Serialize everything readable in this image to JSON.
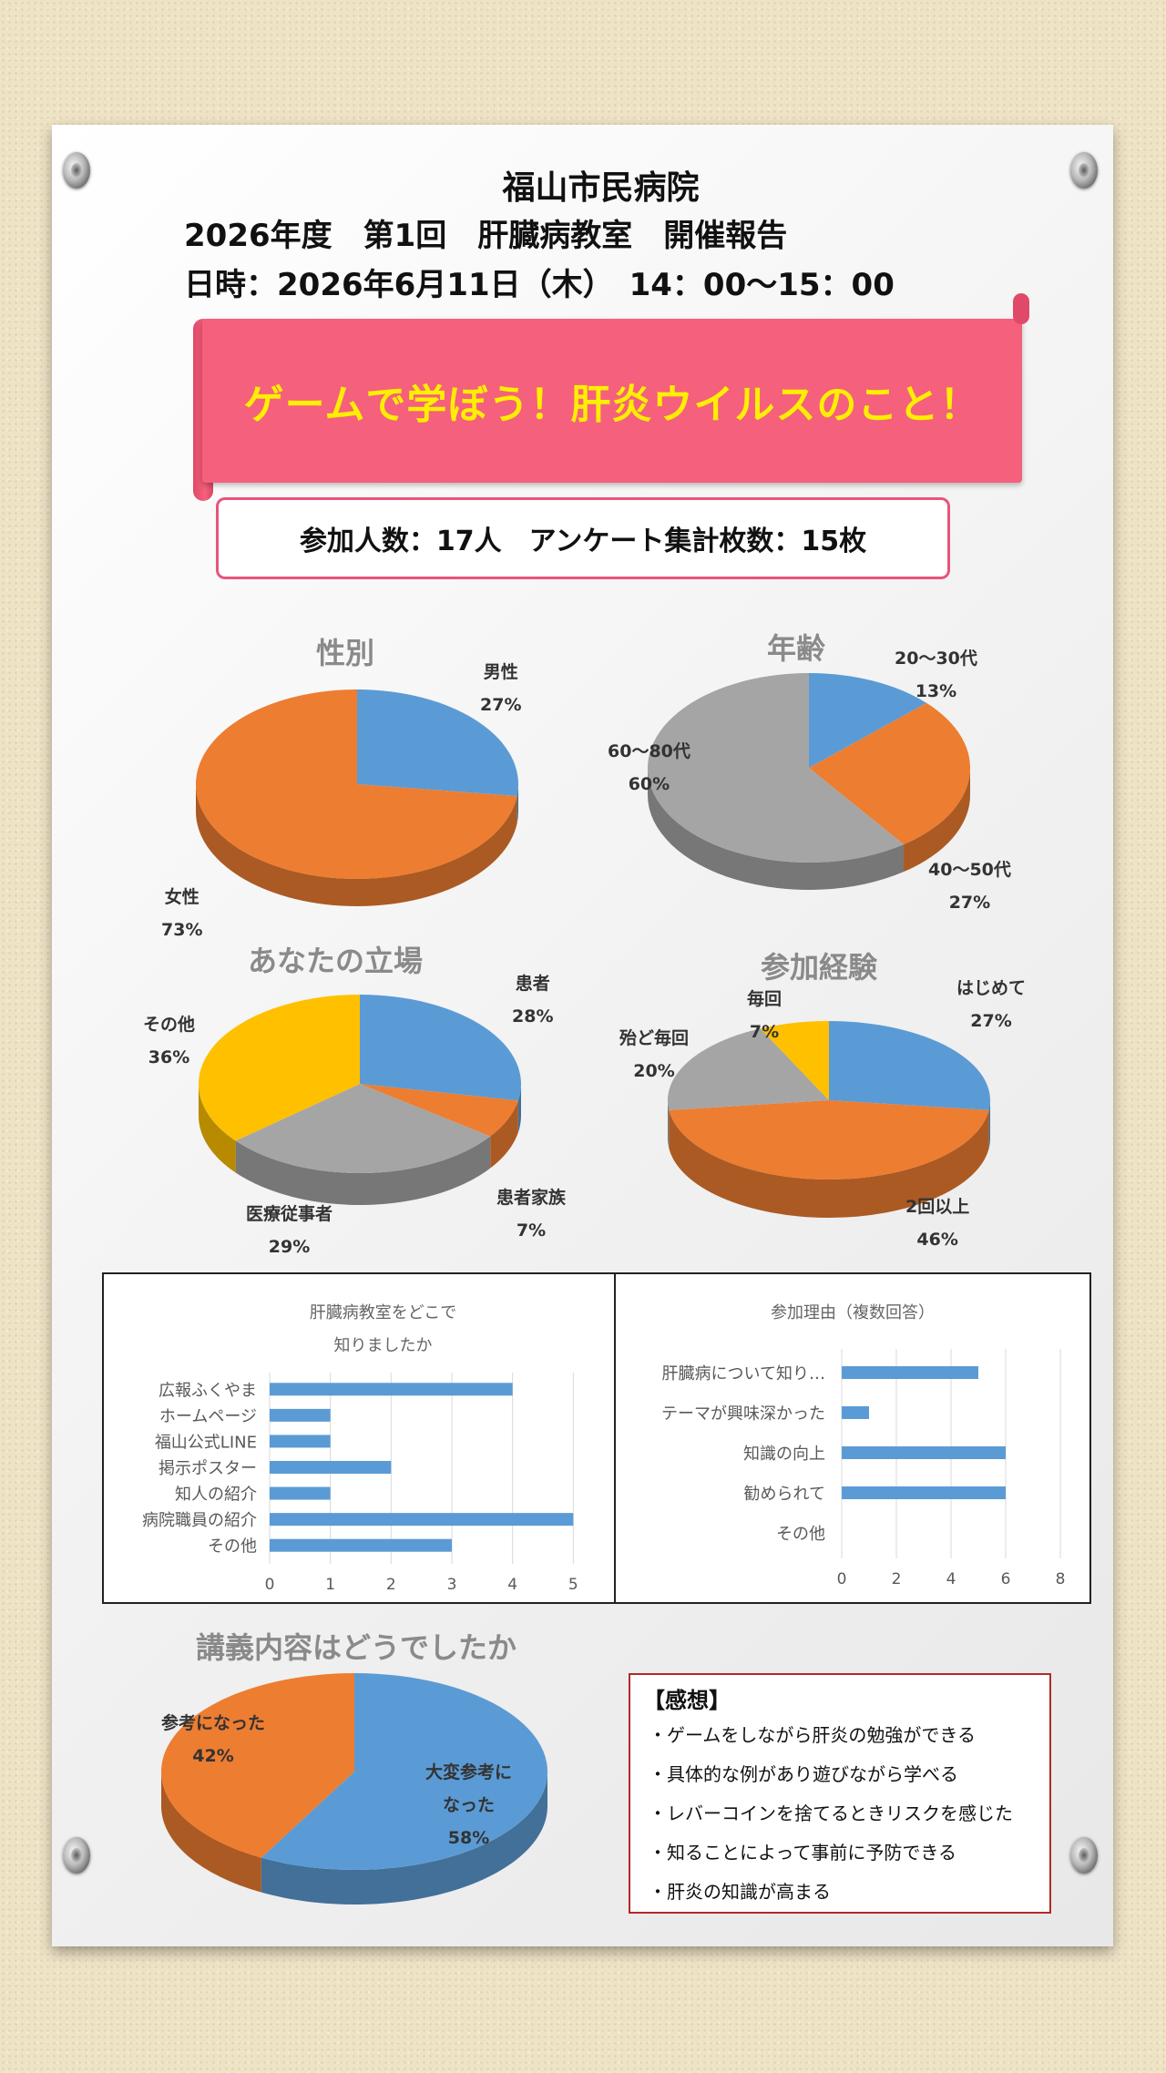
{
  "header": {
    "hospital": "福山市民病院",
    "event": "2026年度　第1回　肝臓病教室　開催報告",
    "datetime": "日時：2026年6月11日（木）　14：00〜15：00"
  },
  "banner": {
    "title": "ゲームで学ぼう！肝炎ウイルスのこと！"
  },
  "counts": {
    "text": "参加人数：17人　アンケート集計枚数：15枚"
  },
  "colors": {
    "blue": "#5b9bd5",
    "orange": "#ed7d31",
    "gray": "#a5a5a5",
    "yellow": "#ffc000",
    "banner": "#f5607c",
    "banner_text": "#ffef00",
    "frame_pink": "#e8557a",
    "comment_border": "#b42828"
  },
  "chart_data": [
    {
      "type": "pie",
      "title": "性別",
      "slices": [
        {
          "label": "男性",
          "pct": "27%",
          "value": 27,
          "color": "#5b9bd5"
        },
        {
          "label": "女性",
          "pct": "73%",
          "value": 73,
          "color": "#ed7d31"
        }
      ]
    },
    {
      "type": "pie",
      "title": "年齢",
      "slices": [
        {
          "label": "20〜30代",
          "pct": "13%",
          "value": 13,
          "color": "#5b9bd5"
        },
        {
          "label": "40〜50代",
          "pct": "27%",
          "value": 27,
          "color": "#ed7d31"
        },
        {
          "label": "60〜80代",
          "pct": "60%",
          "value": 60,
          "color": "#a5a5a5"
        }
      ]
    },
    {
      "type": "pie",
      "title": "あなたの立場",
      "slices": [
        {
          "label": "患者",
          "pct": "28%",
          "value": 28,
          "color": "#5b9bd5"
        },
        {
          "label": "患者家族",
          "pct": "7%",
          "value": 7,
          "color": "#ed7d31"
        },
        {
          "label": "医療従事者",
          "pct": "29%",
          "value": 29,
          "color": "#a5a5a5"
        },
        {
          "label": "その他",
          "pct": "36%",
          "value": 36,
          "color": "#ffc000"
        }
      ]
    },
    {
      "type": "pie",
      "title": "参加経験",
      "slices": [
        {
          "label": "はじめて",
          "pct": "27%",
          "value": 27,
          "color": "#5b9bd5"
        },
        {
          "label": "2回以上",
          "pct": "46%",
          "value": 46,
          "color": "#ed7d31"
        },
        {
          "label": "殆ど毎回",
          "pct": "20%",
          "value": 20,
          "color": "#a5a5a5"
        },
        {
          "label": "毎回",
          "pct": "7%",
          "value": 7,
          "color": "#ffc000"
        }
      ]
    },
    {
      "type": "bar",
      "orientation": "horizontal",
      "title_lines": [
        "肝臓病教室をどこで",
        "知りましたか"
      ],
      "categories": [
        "広報ふくやま",
        "ホームページ",
        "福山公式LINE",
        "掲示ポスター",
        "知人の紹介",
        "病院職員の紹介",
        "その他"
      ],
      "values": [
        4,
        1,
        1,
        2,
        1,
        5,
        3
      ],
      "xlim": [
        0,
        6
      ],
      "ticks": [
        "0",
        "1",
        "2",
        "3",
        "4",
        "5",
        "6"
      ],
      "color": "#5b9bd5",
      "grid": true
    },
    {
      "type": "bar",
      "orientation": "horizontal",
      "title_lines": [
        "参加理由（複数回答）"
      ],
      "categories": [
        "肝臓病について知り…",
        "テーマが興味深かった",
        "知識の向上",
        "勧められて",
        "その他"
      ],
      "values": [
        5,
        1,
        6,
        6,
        0
      ],
      "xlim": [
        0,
        8
      ],
      "ticks": [
        "0",
        "2",
        "4",
        "6",
        "8"
      ],
      "color": "#5b9bd5",
      "grid": true
    },
    {
      "type": "pie",
      "title": "講義内容はどうでしたか",
      "slices": [
        {
          "label": "大変参考に\nなった",
          "pct": "58%",
          "value": 58,
          "color": "#5b9bd5"
        },
        {
          "label": "参考になった",
          "pct": "42%",
          "value": 42,
          "color": "#ed7d31"
        }
      ]
    }
  ],
  "comments": {
    "heading": "【感想】",
    "items": [
      "・ゲームをしながら肝炎の勉強ができる",
      "・具体的な例があり遊びながら学べる",
      "・レバーコインを捨てるときリスクを感じた",
      "・知ることによって事前に予防できる",
      "・肝炎の知識が高まる"
    ]
  }
}
